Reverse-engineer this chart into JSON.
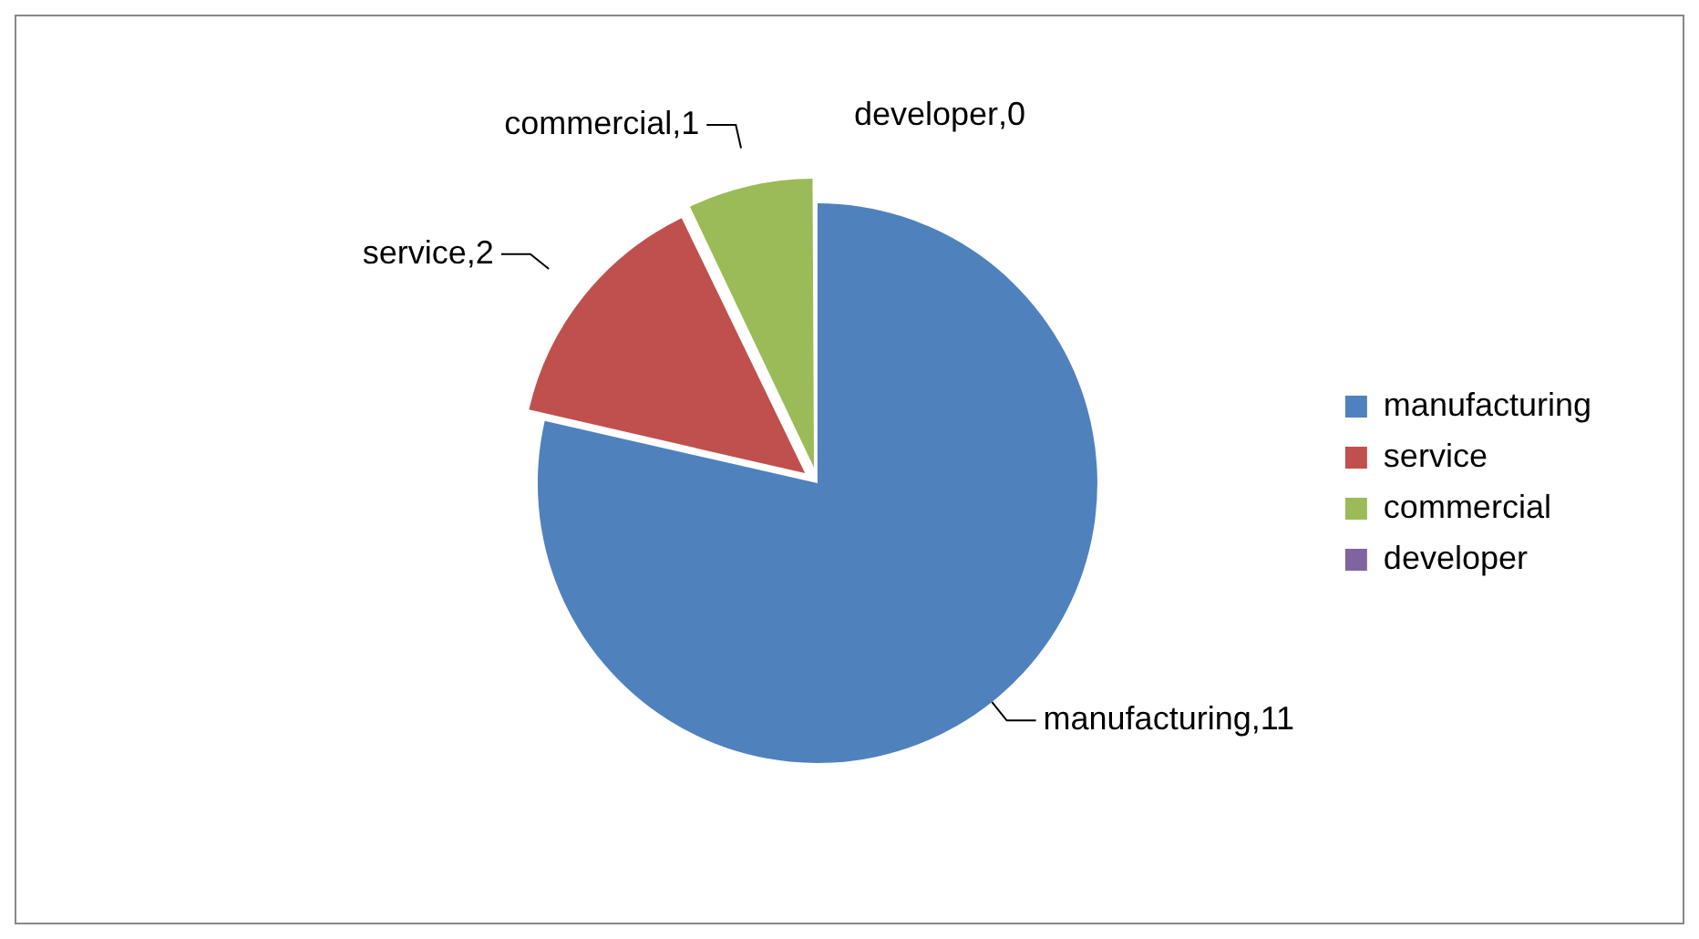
{
  "chart_data": {
    "type": "pie",
    "categories": [
      "manufacturing",
      "service",
      "commercial",
      "developer"
    ],
    "values": [
      11,
      2,
      1,
      0
    ],
    "colors": [
      "#4f81bd",
      "#c0504d",
      "#9bbb59",
      "#8064a2"
    ],
    "value_labels": [
      ",11",
      ",2",
      ",1",
      ",0"
    ],
    "legend": "right"
  }
}
